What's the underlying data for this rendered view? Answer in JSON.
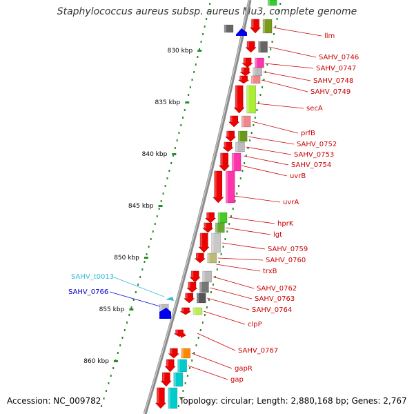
{
  "title": "Staphylococcus aureus subsp. aureus Mu3, complete genome",
  "accession": "Accession: NC_009782",
  "stats": "Topology: circular; Length: 2,880,168 bp; Genes: 2,767",
  "colors": {
    "backbone": "#8a8a8a",
    "tick": "#2a8a2a",
    "label": "#cc0000",
    "trna_label": "#33bbdd",
    "blue_label": "#0000cc"
  },
  "kbp_marks": [
    {
      "kbp": 830,
      "label": "830 kbp"
    },
    {
      "kbp": 835,
      "label": "835 kbp"
    },
    {
      "kbp": 840,
      "label": "840 kbp"
    },
    {
      "kbp": 845,
      "label": "845 kbp"
    },
    {
      "kbp": 850,
      "label": "850 kbp"
    },
    {
      "kbp": 855,
      "label": "855 kbp"
    },
    {
      "kbp": 860,
      "label": "860 kbp"
    }
  ],
  "features": [
    {
      "label": "llm",
      "color": "#cc0000"
    },
    {
      "label": "SAHV_0746",
      "color": "#cc0000"
    },
    {
      "label": "SAHV_0747",
      "color": "#cc0000"
    },
    {
      "label": "SAHV_0748",
      "color": "#cc0000"
    },
    {
      "label": "SAHV_0749",
      "color": "#cc0000"
    },
    {
      "label": "secA",
      "color": "#cc0000"
    },
    {
      "label": "prfB",
      "color": "#cc0000"
    },
    {
      "label": "SAHV_0752",
      "color": "#cc0000"
    },
    {
      "label": "SAHV_0753",
      "color": "#cc0000"
    },
    {
      "label": "SAHV_0754",
      "color": "#cc0000"
    },
    {
      "label": "uvrB",
      "color": "#cc0000"
    },
    {
      "label": "uvrA",
      "color": "#cc0000"
    },
    {
      "label": "hprK",
      "color": "#cc0000"
    },
    {
      "label": "lgt",
      "color": "#cc0000"
    },
    {
      "label": "SAHV_0759",
      "color": "#cc0000"
    },
    {
      "label": "SAHV_0760",
      "color": "#cc0000"
    },
    {
      "label": "trxB",
      "color": "#cc0000"
    },
    {
      "label": "SAHV_0762",
      "color": "#cc0000"
    },
    {
      "label": "SAHV_0763",
      "color": "#cc0000"
    },
    {
      "label": "SAHV_0764",
      "color": "#cc0000"
    },
    {
      "label": "clpP",
      "color": "#cc0000"
    },
    {
      "label": "SAHV_0767",
      "color": "#cc0000"
    },
    {
      "label": "gapR",
      "color": "#cc0000"
    },
    {
      "label": "gap",
      "color": "#cc0000"
    },
    {
      "label": "SAHV_t0013",
      "color": "#33bbdd"
    },
    {
      "label": "SAHV_0766",
      "color": "#0000cc"
    }
  ]
}
